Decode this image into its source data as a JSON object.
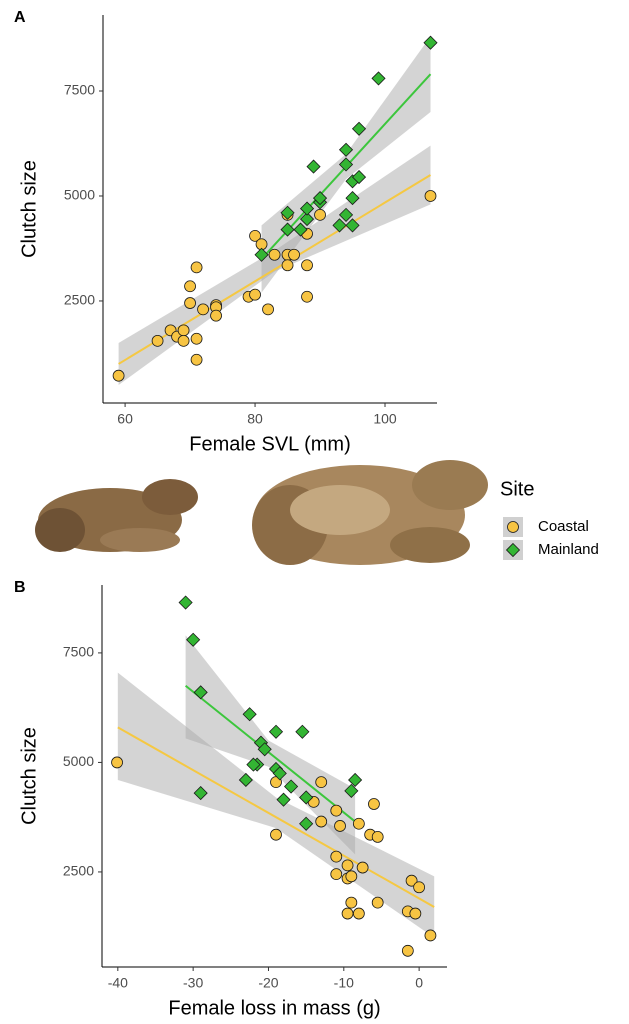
{
  "chart_data": [
    {
      "type": "scatter",
      "panel": "A",
      "xlabel": "Female SVL (mm)",
      "ylabel": "Clutch size",
      "legend_title": "Site",
      "xlim": [
        56.6,
        108
      ],
      "xticks": [
        60,
        80,
        100
      ],
      "ylim": [
        70,
        9310
      ],
      "yticks": [
        2500,
        5000,
        7500
      ],
      "series": [
        {
          "name": "Coastal",
          "color": "#f7c443",
          "line_color": "#f5c842",
          "marker": "circle",
          "x": [
            59,
            65,
            67,
            68,
            69,
            69,
            70,
            70,
            71,
            71,
            71,
            72,
            74,
            74,
            74,
            79,
            80,
            80,
            81,
            82,
            83,
            85,
            85,
            85,
            86,
            88,
            88,
            88,
            90,
            107
          ],
          "values": [
            720,
            1550,
            1800,
            1650,
            1800,
            1550,
            2850,
            2450,
            3300,
            1600,
            1100,
            2300,
            2400,
            2350,
            2150,
            2600,
            4050,
            2650,
            3850,
            2300,
            3600,
            4550,
            3600,
            3350,
            3600,
            4100,
            3350,
            2600,
            4550,
            5000
          ],
          "fit": {
            "x": [
              59,
              107
            ],
            "values": [
              1000,
              5500
            ]
          },
          "band": {
            "x": [
              59,
              83,
              107
            ],
            "lower": [
              500,
              3200,
              4800
            ],
            "upper": [
              1500,
              3700,
              6200
            ]
          }
        },
        {
          "name": "Mainland",
          "color": "#33b533",
          "line_color": "#3cc63c",
          "marker": "diamond",
          "x": [
            81,
            85,
            85,
            87,
            88,
            88,
            89,
            90,
            90,
            93,
            94,
            94,
            94,
            95,
            95,
            95,
            96,
            96,
            99,
            107
          ],
          "values": [
            3600,
            4600,
            4200,
            4200,
            4450,
            4700,
            5700,
            4850,
            4950,
            4300,
            4550,
            5750,
            6100,
            5350,
            4950,
            4300,
            5450,
            6600,
            7800,
            8650
          ],
          "fit": {
            "x": [
              81,
              107
            ],
            "values": [
              3500,
              7900
            ]
          },
          "band": {
            "x": [
              81,
              94,
              107
            ],
            "lower": [
              2700,
              5400,
              7000
            ],
            "upper": [
              4300,
              6000,
              8800
            ]
          }
        }
      ]
    },
    {
      "type": "scatter",
      "panel": "B",
      "xlabel": "Female loss in mass (g)",
      "ylabel": "Clutch size",
      "xlim": [
        -42.1,
        3.7
      ],
      "xticks": [
        -40,
        -30,
        -20,
        -10,
        0
      ],
      "ylim": [
        330,
        9050
      ],
      "yticks": [
        2500,
        5000,
        7500
      ],
      "series": [
        {
          "name": "Coastal",
          "color": "#f7c443",
          "line_color": "#f5c842",
          "marker": "circle",
          "x": [
            -40.1,
            -19,
            -19,
            -13,
            -14,
            -13,
            -11,
            -10.5,
            -11,
            -11,
            -9.5,
            -9.5,
            -9,
            -8,
            -7.5,
            -6,
            -6.5,
            -5.5,
            -9.5,
            -9,
            -8,
            -5.5,
            -1,
            0,
            -1.5,
            -0.5,
            -1.5,
            1.5
          ],
          "values": [
            5000,
            3350,
            4550,
            4550,
            4100,
            3650,
            3900,
            3550,
            2850,
            2450,
            2650,
            2350,
            2400,
            3600,
            2600,
            4050,
            3350,
            3300,
            1550,
            1800,
            1550,
            1800,
            2300,
            2150,
            1600,
            1550,
            700,
            1050
          ],
          "fit": {
            "x": [
              -40,
              2
            ],
            "values": [
              5800,
              1700
            ]
          },
          "band": {
            "x": [
              -40,
              -19,
              2
            ],
            "lower": [
              4600,
              3500,
              1000
            ],
            "upper": [
              7050,
              4200,
              2400
            ]
          }
        },
        {
          "name": "Mainland",
          "color": "#33b533",
          "line_color": "#3cc63c",
          "marker": "diamond",
          "x": [
            -31,
            -30,
            -29,
            -22.5,
            -21,
            -20.5,
            -19,
            -15.5,
            -21.5,
            -22,
            -23,
            -29,
            -19,
            -18.5,
            -17,
            -15,
            -18,
            -15,
            -8.5,
            -9
          ],
          "values": [
            8650,
            7800,
            6600,
            6100,
            5450,
            5300,
            5700,
            5700,
            4950,
            4950,
            4600,
            4300,
            4850,
            4750,
            4450,
            4200,
            4150,
            3600,
            4600,
            4350
          ],
          "fit": {
            "x": [
              -31,
              -8.5
            ],
            "values": [
              6750,
              3650
            ]
          },
          "band": {
            "x": [
              -31,
              -20,
              -8.5
            ],
            "lower": [
              5550,
              4900,
              2900
            ],
            "upper": [
              7900,
              5500,
              4400
            ]
          }
        }
      ]
    }
  ]
}
